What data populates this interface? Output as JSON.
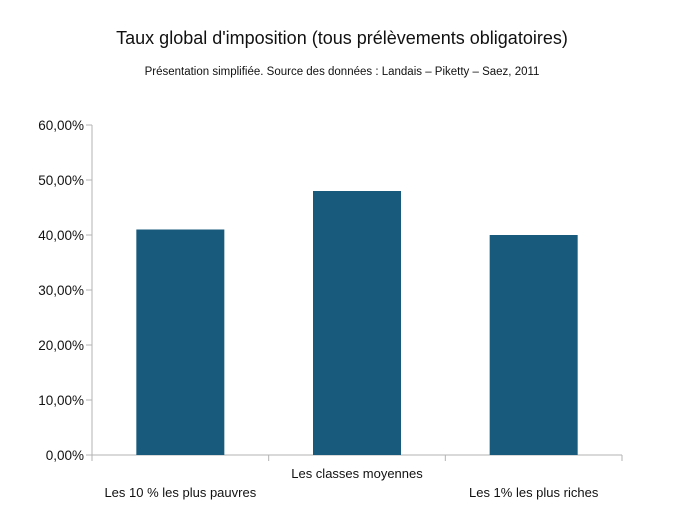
{
  "chart_data": {
    "type": "bar",
    "title": "Taux global d'imposition (tous prélèvements obligatoires)",
    "subtitle": "Présentation simplifiée. Source des données : Landais – Piketty – Saez, 2011",
    "categories": [
      "Les 10 % les plus pauvres",
      "Les classes moyennes",
      "Les 1% les plus riches"
    ],
    "values": [
      41,
      48,
      40
    ],
    "ylim": [
      0,
      60
    ],
    "yticks": [
      0,
      10,
      20,
      30,
      40,
      50,
      60
    ],
    "ytick_labels": [
      "0,00%",
      "10,00%",
      "20,00%",
      "30,00%",
      "40,00%",
      "50,00%",
      "60,00%"
    ],
    "xlabel": "",
    "ylabel": "",
    "grid": false,
    "legend": "none",
    "bar_color": "#175a7b",
    "axis_color": "#b3b3b3"
  }
}
